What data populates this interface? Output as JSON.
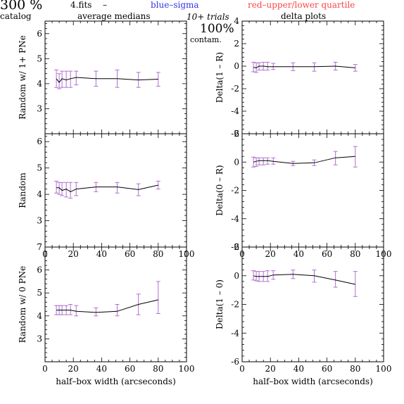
{
  "header": {
    "percent": "300 %",
    "catalog": "catalog",
    "filename": "4.fits",
    "dash": "–",
    "medians": "average medians",
    "blue_label": "blue–sigma",
    "red_label": "red–upper/lower quartile",
    "trials": "10+ trials",
    "contam_pct": "100%",
    "contam": "contam.",
    "delta_title": "delta plots"
  },
  "colors": {
    "line": "#000000",
    "error_bar": "#b070d0",
    "blue": "#3333ee",
    "red": "#ff4444"
  },
  "chart_data": [
    {
      "type": "line",
      "ylabel": "Random w/ 1+ PNe",
      "xlabel": "",
      "xlim": [
        0,
        100
      ],
      "ylim": [
        2,
        6.5
      ],
      "yticks": [
        3,
        4,
        5,
        6
      ],
      "xticks": [
        0,
        20,
        40,
        60,
        80,
        100
      ],
      "show_xticklabels": false,
      "x": [
        8,
        10,
        12,
        15,
        18,
        22,
        36,
        51,
        66,
        80
      ],
      "y": [
        4.2,
        4.05,
        4.2,
        4.15,
        4.2,
        4.25,
        4.2,
        4.2,
        4.15,
        4.18
      ],
      "err_lo": [
        3.85,
        3.8,
        3.85,
        3.85,
        3.85,
        3.95,
        3.9,
        3.85,
        3.85,
        3.9
      ],
      "err_hi": [
        4.55,
        4.4,
        4.5,
        4.5,
        4.5,
        4.5,
        4.5,
        4.55,
        4.45,
        4.45
      ]
    },
    {
      "type": "line",
      "ylabel": "Delta(1 – R)",
      "xlabel": "",
      "xlim": [
        0,
        100
      ],
      "ylim": [
        -6,
        4
      ],
      "yticks": [
        -6,
        -4,
        -2,
        0,
        2,
        4
      ],
      "xticks": [
        0,
        20,
        40,
        60,
        80,
        100
      ],
      "show_xticklabels": false,
      "x": [
        8,
        10,
        12,
        15,
        18,
        22,
        36,
        51,
        66,
        80
      ],
      "y": [
        -0.1,
        -0.15,
        0.0,
        0.0,
        -0.05,
        -0.05,
        -0.05,
        -0.05,
        0.0,
        -0.15
      ],
      "err_lo": [
        -0.5,
        -0.55,
        -0.35,
        -0.35,
        -0.35,
        -0.3,
        -0.4,
        -0.45,
        -0.35,
        -0.45
      ],
      "err_hi": [
        0.35,
        0.3,
        0.3,
        0.35,
        0.35,
        0.25,
        0.3,
        0.3,
        0.35,
        0.15
      ]
    },
    {
      "type": "line",
      "ylabel": "Random",
      "xlabel": "",
      "xlim": [
        0,
        100
      ],
      "ylim": [
        2,
        6.3
      ],
      "yticks": [
        3,
        4,
        5,
        6
      ],
      "xticks": [
        0,
        20,
        40,
        60,
        80,
        100
      ],
      "show_xticklabels": true,
      "x": [
        8,
        10,
        12,
        15,
        18,
        22,
        36,
        51,
        66,
        80
      ],
      "y": [
        4.25,
        4.25,
        4.15,
        4.2,
        4.1,
        4.2,
        4.28,
        4.28,
        4.18,
        4.35
      ],
      "err_lo": [
        4.05,
        4.0,
        3.95,
        3.9,
        3.85,
        3.95,
        4.1,
        4.05,
        3.95,
        4.2
      ],
      "err_hi": [
        4.5,
        4.45,
        4.45,
        4.45,
        4.45,
        4.45,
        4.45,
        4.45,
        4.4,
        4.5
      ]
    },
    {
      "type": "line",
      "ylabel": "Delta(0 – R)",
      "xlabel": "",
      "xlim": [
        0,
        100
      ],
      "ylim": [
        -6,
        2
      ],
      "yticks": [
        -6,
        -4,
        -2,
        0,
        2
      ],
      "xticks": [
        0,
        20,
        40,
        60,
        80,
        100
      ],
      "show_xticklabels": true,
      "x": [
        8,
        10,
        12,
        15,
        18,
        22,
        36,
        51,
        66,
        80
      ],
      "y": [
        0.0,
        0.05,
        0.1,
        0.1,
        0.1,
        0.05,
        -0.1,
        -0.05,
        0.3,
        0.4
      ],
      "err_lo": [
        -0.35,
        -0.3,
        -0.2,
        -0.2,
        -0.15,
        -0.15,
        -0.25,
        -0.25,
        -0.2,
        -0.35
      ],
      "err_hi": [
        0.35,
        0.3,
        0.3,
        0.3,
        0.3,
        0.3,
        0.05,
        0.15,
        0.75,
        1.1
      ]
    },
    {
      "type": "line",
      "ylabel": "Random w/ 0 PNe",
      "xlabel": "half–box width (arcseconds)",
      "xlim": [
        0,
        100
      ],
      "ylim": [
        2,
        7
      ],
      "yticks": [
        3,
        4,
        5,
        6,
        7
      ],
      "xticks": [
        0,
        20,
        40,
        60,
        80,
        100
      ],
      "show_xticklabels": true,
      "x": [
        8,
        10,
        12,
        15,
        18,
        22,
        36,
        51,
        66,
        80
      ],
      "y": [
        4.25,
        4.25,
        4.25,
        4.25,
        4.25,
        4.2,
        4.15,
        4.2,
        4.5,
        4.7
      ],
      "err_lo": [
        4.05,
        4.05,
        4.05,
        4.05,
        4.05,
        4.0,
        4.0,
        4.0,
        4.05,
        4.1
      ],
      "err_hi": [
        4.45,
        4.45,
        4.45,
        4.45,
        4.5,
        4.45,
        4.35,
        4.5,
        4.95,
        5.5
      ]
    },
    {
      "type": "line",
      "ylabel": "Delta(1 – 0)",
      "xlabel": "half–box width (arcseconds)",
      "xlim": [
        0,
        100
      ],
      "ylim": [
        -6,
        2
      ],
      "yticks": [
        -6,
        -4,
        -2,
        0,
        2
      ],
      "xticks": [
        0,
        20,
        40,
        60,
        80,
        100
      ],
      "show_xticklabels": true,
      "x": [
        8,
        10,
        12,
        15,
        18,
        22,
        36,
        51,
        66,
        80
      ],
      "y": [
        0.0,
        -0.05,
        -0.05,
        -0.05,
        -0.05,
        0.05,
        0.1,
        0.0,
        -0.3,
        -0.6
      ],
      "err_lo": [
        -0.3,
        -0.35,
        -0.4,
        -0.4,
        -0.4,
        -0.25,
        -0.2,
        -0.45,
        -0.8,
        -1.45
      ],
      "err_hi": [
        0.35,
        0.3,
        0.3,
        0.3,
        0.35,
        0.35,
        0.4,
        0.4,
        0.3,
        0.3
      ]
    }
  ]
}
